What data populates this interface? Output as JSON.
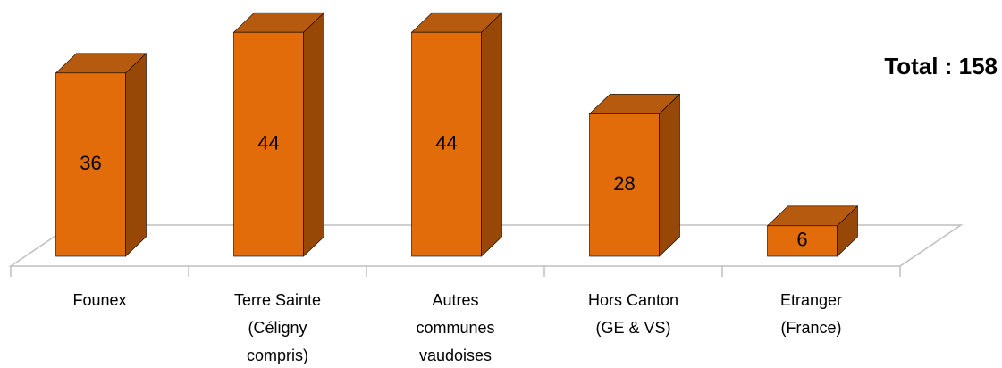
{
  "chart_data": {
    "type": "bar3d",
    "categories": [
      [
        "Founex"
      ],
      [
        "Terre Sainte",
        "(Céligny",
        "compris)"
      ],
      [
        "Autres",
        "communes",
        "vaudoises"
      ],
      [
        "Hors Canton",
        "(GE & VS)"
      ],
      [
        "Etranger",
        "(France)"
      ]
    ],
    "values": [
      36,
      44,
      44,
      28,
      6
    ],
    "annotation": "Total : 158",
    "colors": {
      "front": "#e36c0a",
      "top": "#b55a0e",
      "side": "#974706"
    },
    "ylim": [
      0,
      50
    ]
  }
}
